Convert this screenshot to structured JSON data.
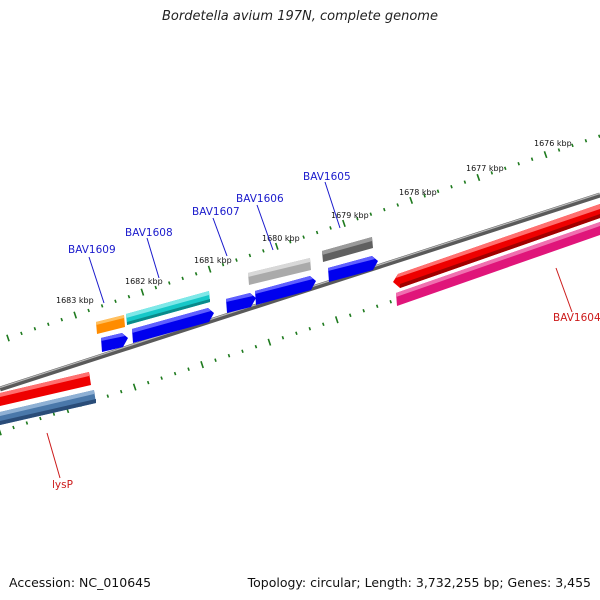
{
  "title": "Bordetella avium 197N, complete genome",
  "accession": "Accession: NC_010645",
  "summary": "Topology: circular; Length: 3,732,255 bp; Genes: 3,455",
  "scale_labels": [
    "1676 kbp",
    "1677 kbp",
    "1678 kbp",
    "1679 kbp",
    "1680 kbp",
    "1681 kbp",
    "1682 kbp",
    "1683 kbp"
  ],
  "gene_labels": [
    {
      "text": "BAV1609",
      "color": "#1a1acc"
    },
    {
      "text": "BAV1608",
      "color": "#1a1acc"
    },
    {
      "text": "BAV1607",
      "color": "#1a1acc"
    },
    {
      "text": "BAV1606",
      "color": "#1a1acc"
    },
    {
      "text": "BAV1605",
      "color": "#1a1acc"
    },
    {
      "text": "BAV1604",
      "color": "#cc1a1a"
    },
    {
      "text": "lysP",
      "color": "#cc1a1a"
    }
  ],
  "colors": {
    "backbone": "#808080",
    "tick": "#1e7a1e",
    "forward_gene": "#0000ee",
    "reverse_gene": "#ee0000",
    "pink_gene": "#e0157a",
    "steel_gene": "#4a78aa",
    "orange_gene": "#ff8c00",
    "cyan_gene": "#16c8c8",
    "gray_gene": "#aaaaaa",
    "darkgray_gene": "#606060"
  }
}
